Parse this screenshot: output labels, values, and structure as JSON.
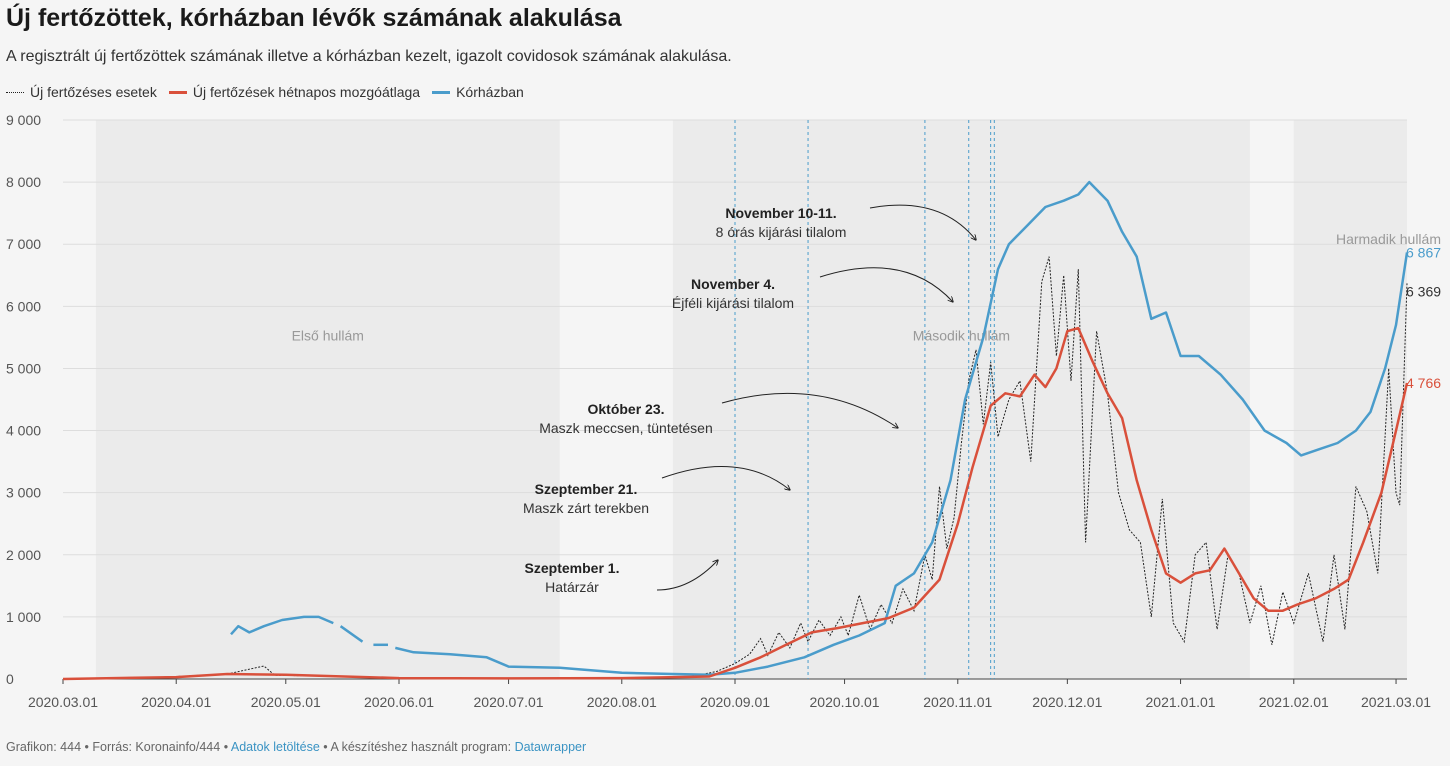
{
  "title": "Új fertőzöttek, kórházban lévők számának alakulása",
  "subtitle": "A regisztrált új fertőzöttek számának illetve a kórházban kezelt, igazolt covidosok számának alakulása.",
  "colors": {
    "daily": "#222222",
    "avg": "#d9503b",
    "hosp": "#4a9ccb",
    "band": "#ebebeb",
    "grid": "#dddddd",
    "axis": "#444444"
  },
  "footer": {
    "prefix": "Grafikon: 444 • Forrás: Koronainfo/444 • ",
    "download": "Adatok letöltése",
    "middle": " • A készítéshez használt program: ",
    "tool": "Datawrapper"
  },
  "chart_data": {
    "type": "line",
    "title": "Új fertőzöttek, kórházban lévők számának alakulása",
    "x_start": "2020.03.01",
    "x_end": "2021.03.04",
    "ylim": [
      0,
      9000
    ],
    "yticks": [
      0,
      1000,
      2000,
      3000,
      4000,
      5000,
      6000,
      7000,
      8000,
      9000
    ],
    "ytick_labels": [
      "0",
      "1 000",
      "2 000",
      "3 000",
      "4 000",
      "5 000",
      "6 000",
      "7 000",
      "8 000",
      "9 000"
    ],
    "xticks": [
      "2020.03.01",
      "2020.04.01",
      "2020.05.01",
      "2020.06.01",
      "2020.07.01",
      "2020.08.01",
      "2020.09.01",
      "2020.10.01",
      "2020.11.01",
      "2020.12.01",
      "2021.01.01",
      "2021.02.01",
      "2021.03.01"
    ],
    "grid": true,
    "legend_position": "top-left",
    "waves": [
      {
        "label": "Első hullám",
        "start": "2020.03.10",
        "end": "2020.07.15",
        "label_y": 5450
      },
      {
        "label": "Második hullám",
        "start": "2020.08.15",
        "end": "2021.01.20",
        "label_y": 5450
      },
      {
        "label": "Harmadik hullám",
        "start": "2021.02.01",
        "end": "2021.03.04",
        "label_y": 7000
      }
    ],
    "events": [
      {
        "date": "2020.09.01",
        "title": "Szeptember 1.",
        "text": "Határzár"
      },
      {
        "date": "2020.09.21",
        "title": "Szeptember 21.",
        "text": "Maszk zárt terekben"
      },
      {
        "date": "2020.10.23",
        "title": "Október 23.",
        "text": "Maszk meccsen, tüntetésen"
      },
      {
        "date": "2020.11.04",
        "title": "November 4.",
        "text": "Éjféli kijárási tilalom"
      },
      {
        "date": "2020.11.10",
        "title": "November 10-11.",
        "text": "8 órás kijárási tilalom"
      }
    ],
    "series": [
      {
        "name": "Új fertőzéses esetek",
        "style": "dotted",
        "points": [
          [
            "2020.03.01",
            0
          ],
          [
            "2020.03.20",
            15
          ],
          [
            "2020.04.01",
            40
          ],
          [
            "2020.04.15",
            80
          ],
          [
            "2020.04.25",
            210
          ],
          [
            "2020.04.28",
            60
          ],
          [
            "2020.05.10",
            50
          ],
          [
            "2020.06.01",
            20
          ],
          [
            "2020.07.01",
            15
          ],
          [
            "2020.08.01",
            20
          ],
          [
            "2020.08.20",
            40
          ],
          [
            "2020.08.27",
            120
          ],
          [
            "2020.09.01",
            250
          ],
          [
            "2020.09.05",
            400
          ],
          [
            "2020.09.08",
            650
          ],
          [
            "2020.09.10",
            380
          ],
          [
            "2020.09.13",
            750
          ],
          [
            "2020.09.16",
            500
          ],
          [
            "2020.09.19",
            900
          ],
          [
            "2020.09.21",
            600
          ],
          [
            "2020.09.24",
            950
          ],
          [
            "2020.09.27",
            700
          ],
          [
            "2020.09.30",
            1000
          ],
          [
            "2020.10.02",
            700
          ],
          [
            "2020.10.05",
            1350
          ],
          [
            "2020.10.08",
            800
          ],
          [
            "2020.10.11",
            1200
          ],
          [
            "2020.10.14",
            900
          ],
          [
            "2020.10.17",
            1450
          ],
          [
            "2020.10.20",
            1100
          ],
          [
            "2020.10.23",
            2000
          ],
          [
            "2020.10.25",
            1600
          ],
          [
            "2020.10.27",
            3100
          ],
          [
            "2020.10.29",
            2100
          ],
          [
            "2020.10.31",
            2600
          ],
          [
            "2020.11.02",
            3800
          ],
          [
            "2020.11.04",
            4800
          ],
          [
            "2020.11.06",
            5300
          ],
          [
            "2020.11.08",
            4100
          ],
          [
            "2020.11.10",
            5100
          ],
          [
            "2020.11.12",
            3900
          ],
          [
            "2020.11.15",
            4500
          ],
          [
            "2020.11.18",
            4800
          ],
          [
            "2020.11.21",
            3500
          ],
          [
            "2020.11.24",
            6400
          ],
          [
            "2020.11.26",
            6800
          ],
          [
            "2020.11.28",
            5200
          ],
          [
            "2020.11.30",
            6500
          ],
          [
            "2020.12.02",
            4800
          ],
          [
            "2020.12.04",
            6600
          ],
          [
            "2020.12.06",
            2200
          ],
          [
            "2020.12.09",
            5600
          ],
          [
            "2020.12.12",
            4600
          ],
          [
            "2020.12.15",
            3000
          ],
          [
            "2020.12.18",
            2400
          ],
          [
            "2020.12.21",
            2200
          ],
          [
            "2020.12.24",
            1000
          ],
          [
            "2020.12.27",
            2900
          ],
          [
            "2020.12.30",
            900
          ],
          [
            "2021.01.02",
            600
          ],
          [
            "2021.01.05",
            2000
          ],
          [
            "2021.01.08",
            2200
          ],
          [
            "2021.01.11",
            800
          ],
          [
            "2021.01.14",
            2000
          ],
          [
            "2021.01.17",
            1700
          ],
          [
            "2021.01.20",
            900
          ],
          [
            "2021.01.23",
            1500
          ],
          [
            "2021.01.26",
            550
          ],
          [
            "2021.01.29",
            1400
          ],
          [
            "2021.02.01",
            900
          ],
          [
            "2021.02.05",
            1700
          ],
          [
            "2021.02.09",
            600
          ],
          [
            "2021.02.12",
            2000
          ],
          [
            "2021.02.15",
            800
          ],
          [
            "2021.02.18",
            3100
          ],
          [
            "2021.02.21",
            2700
          ],
          [
            "2021.02.24",
            1700
          ],
          [
            "2021.02.27",
            5000
          ],
          [
            "2021.03.01",
            3000
          ],
          [
            "2021.03.02",
            2800
          ],
          [
            "2021.03.04",
            6369
          ]
        ]
      },
      {
        "name": "Új fertőzések hétnapos mozgóátlaga",
        "style": "solid",
        "points": [
          [
            "2020.03.01",
            0
          ],
          [
            "2020.04.01",
            30
          ],
          [
            "2020.04.15",
            80
          ],
          [
            "2020.05.01",
            70
          ],
          [
            "2020.06.01",
            15
          ],
          [
            "2020.07.01",
            10
          ],
          [
            "2020.08.01",
            15
          ],
          [
            "2020.08.25",
            40
          ],
          [
            "2020.09.01",
            180
          ],
          [
            "2020.09.08",
            350
          ],
          [
            "2020.09.15",
            550
          ],
          [
            "2020.09.22",
            750
          ],
          [
            "2020.09.29",
            820
          ],
          [
            "2020.10.06",
            900
          ],
          [
            "2020.10.13",
            980
          ],
          [
            "2020.10.20",
            1150
          ],
          [
            "2020.10.27",
            1600
          ],
          [
            "2020.11.01",
            2500
          ],
          [
            "2020.11.05",
            3400
          ],
          [
            "2020.11.10",
            4400
          ],
          [
            "2020.11.14",
            4600
          ],
          [
            "2020.11.18",
            4550
          ],
          [
            "2020.11.22",
            4900
          ],
          [
            "2020.11.25",
            4700
          ],
          [
            "2020.11.28",
            5000
          ],
          [
            "2020.12.01",
            5600
          ],
          [
            "2020.12.04",
            5650
          ],
          [
            "2020.12.08",
            5100
          ],
          [
            "2020.12.12",
            4600
          ],
          [
            "2020.12.16",
            4200
          ],
          [
            "2020.12.20",
            3200
          ],
          [
            "2020.12.24",
            2400
          ],
          [
            "2020.12.28",
            1700
          ],
          [
            "2021.01.01",
            1550
          ],
          [
            "2021.01.05",
            1700
          ],
          [
            "2021.01.09",
            1750
          ],
          [
            "2021.01.13",
            2100
          ],
          [
            "2021.01.17",
            1700
          ],
          [
            "2021.01.21",
            1300
          ],
          [
            "2021.01.25",
            1100
          ],
          [
            "2021.01.29",
            1100
          ],
          [
            "2021.02.02",
            1200
          ],
          [
            "2021.02.07",
            1300
          ],
          [
            "2021.02.12",
            1450
          ],
          [
            "2021.02.16",
            1600
          ],
          [
            "2021.02.20",
            2200
          ],
          [
            "2021.02.25",
            3000
          ],
          [
            "2021.03.01",
            4000
          ],
          [
            "2021.03.04",
            4766
          ]
        ]
      },
      {
        "name": "Kórházban",
        "style": "solid",
        "segments": [
          [
            [
              "2020.04.16",
              720
            ],
            [
              "2020.04.18",
              850
            ],
            [
              "2020.04.21",
              750
            ],
            [
              "2020.04.25",
              850
            ],
            [
              "2020.04.30",
              950
            ],
            [
              "2020.05.06",
              1000
            ],
            [
              "2020.05.10",
              1000
            ],
            [
              "2020.05.14",
              900
            ]
          ],
          [
            [
              "2020.05.16",
              850
            ],
            [
              "2020.05.22",
              600
            ]
          ],
          [
            [
              "2020.05.25",
              550
            ],
            [
              "2020.05.29",
              550
            ]
          ],
          [
            [
              "2020.05.31",
              500
            ],
            [
              "2020.06.05",
              430
            ],
            [
              "2020.06.15",
              400
            ],
            [
              "2020.06.25",
              350
            ],
            [
              "2020.07.01",
              200
            ],
            [
              "2020.07.15",
              180
            ],
            [
              "2020.08.01",
              100
            ],
            [
              "2020.08.15",
              80
            ],
            [
              "2020.08.25",
              70
            ],
            [
              "2020.09.01",
              100
            ],
            [
              "2020.09.10",
              200
            ],
            [
              "2020.09.20",
              350
            ],
            [
              "2020.09.28",
              550
            ],
            [
              "2020.10.05",
              700
            ],
            [
              "2020.10.12",
              900
            ],
            [
              "2020.10.15",
              1500
            ],
            [
              "2020.10.20",
              1700
            ],
            [
              "2020.10.25",
              2200
            ],
            [
              "2020.10.30",
              3200
            ],
            [
              "2020.11.03",
              4500
            ],
            [
              "2020.11.08",
              5500
            ],
            [
              "2020.11.12",
              6600
            ],
            [
              "2020.11.15",
              7000
            ],
            [
              "2020.11.20",
              7300
            ],
            [
              "2020.11.25",
              7600
            ],
            [
              "2020.11.30",
              7700
            ],
            [
              "2020.12.04",
              7800
            ],
            [
              "2020.12.07",
              8000
            ],
            [
              "2020.12.12",
              7700
            ],
            [
              "2020.12.16",
              7200
            ],
            [
              "2020.12.20",
              6800
            ],
            [
              "2020.12.24",
              5800
            ],
            [
              "2020.12.28",
              5900
            ],
            [
              "2021.01.01",
              5200
            ],
            [
              "2021.01.06",
              5200
            ],
            [
              "2021.01.12",
              4900
            ],
            [
              "2021.01.18",
              4500
            ],
            [
              "2021.01.24",
              4000
            ],
            [
              "2021.01.30",
              3800
            ],
            [
              "2021.02.03",
              3600
            ],
            [
              "2021.02.08",
              3700
            ],
            [
              "2021.02.13",
              3800
            ],
            [
              "2021.02.18",
              4000
            ],
            [
              "2021.02.22",
              4300
            ],
            [
              "2021.02.26",
              5000
            ],
            [
              "2021.03.01",
              5700
            ],
            [
              "2021.03.04",
              6867
            ]
          ]
        ]
      }
    ],
    "end_labels": [
      {
        "series": "Kórházban",
        "value": "6 867"
      },
      {
        "series": "Új fertőzéses esetek",
        "value": "6 369"
      },
      {
        "series": "Új fertőzések hétnapos mozgóátlaga",
        "value": "4 766"
      }
    ]
  }
}
